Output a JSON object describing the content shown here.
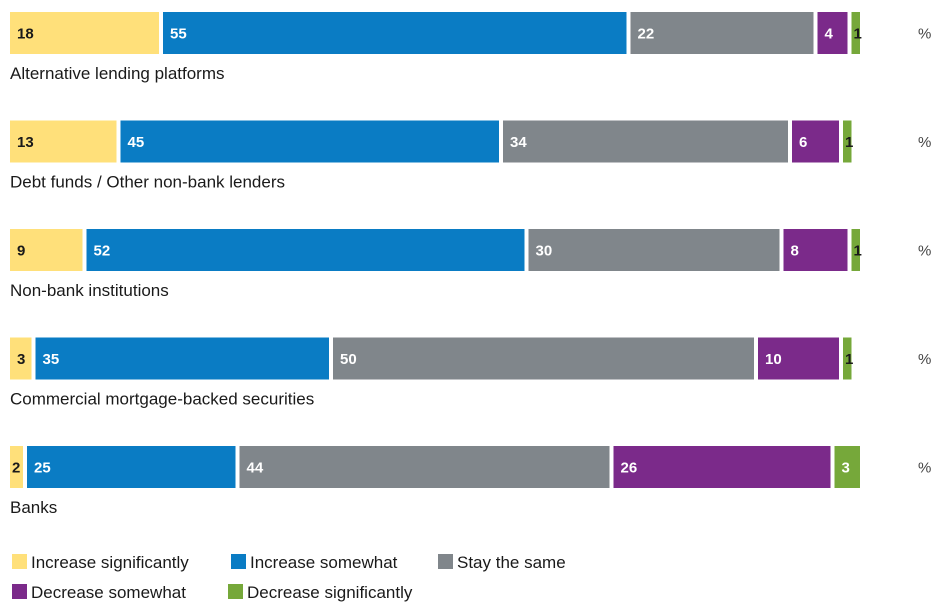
{
  "chart_data": {
    "type": "bar",
    "stacked": true,
    "orientation": "horizontal",
    "categories": [
      "Alternative lending platforms",
      "Debt funds / Other non-bank lenders",
      "Non-bank institutions",
      "Commercial mortgage-backed securities",
      "Banks"
    ],
    "series": [
      {
        "name": "Increase significantly",
        "color": "#FFE07A",
        "values": [
          18,
          13,
          9,
          3,
          2
        ]
      },
      {
        "name": "Increase somewhat",
        "color": "#0A7CC4",
        "values": [
          55,
          45,
          52,
          35,
          25
        ]
      },
      {
        "name": "Stay the same",
        "color": "#80868B",
        "values": [
          22,
          34,
          30,
          50,
          44
        ]
      },
      {
        "name": "Decrease somewhat",
        "color": "#7B2A8A",
        "values": [
          4,
          6,
          8,
          10,
          26
        ]
      },
      {
        "name": "Decrease significantly",
        "color": "#76A83A",
        "values": [
          1,
          1,
          1,
          1,
          3
        ]
      }
    ],
    "unit_label": "%",
    "legend_position": "bottom",
    "grid": false
  }
}
